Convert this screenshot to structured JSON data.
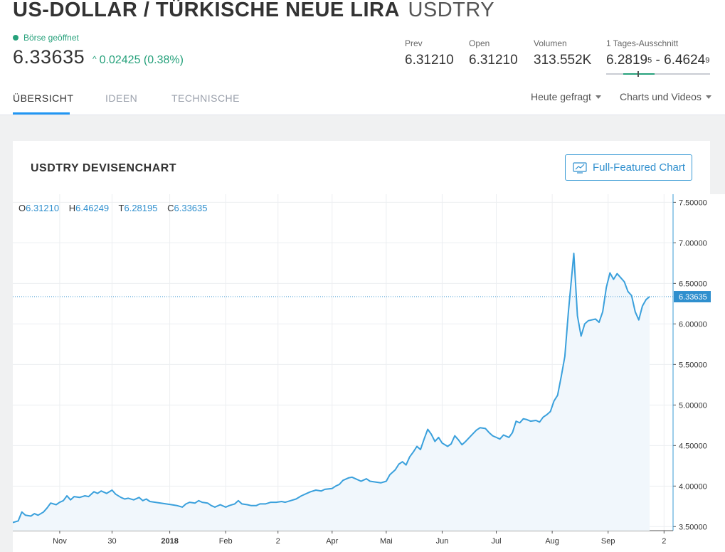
{
  "header": {
    "title": "US-DOLLAR / TÜRKISCHE NEUE LIRA",
    "symbol": "USDTRY",
    "status": "Börse geöffnet",
    "price": "6.33635",
    "change": "0.02425 (0.38%)",
    "stats": {
      "prev_label": "Prev",
      "prev_value": "6.31210",
      "open_label": "Open",
      "open_value": "6.31210",
      "volume_label": "Volumen",
      "volume_value": "313.552K",
      "range_label": "1 Tages-Ausschnitt",
      "range_low": "6.2819",
      "range_low_sup": "5",
      "range_sep": "-",
      "range_high": "6.4624",
      "range_high_sup": "9",
      "range_position": 0.3
    }
  },
  "tabs": [
    {
      "label": "ÜBERSICHT",
      "active": true
    },
    {
      "label": "IDEEN",
      "active": false
    },
    {
      "label": "TECHNISCHE",
      "active": false
    }
  ],
  "dropdowns": [
    "Heute gefragt",
    "Charts und Videos"
  ],
  "card": {
    "title": "USDTRY DEVISENCHART",
    "button_label": "Full-Featured Chart"
  },
  "ohlc": {
    "o_label": "O",
    "o_value": "6.31210",
    "h_label": "H",
    "h_value": "6.46249",
    "l_label": "T",
    "l_value": "6.28195",
    "c_label": "C",
    "c_value": "6.33635"
  },
  "colors": {
    "accent": "#2f8fce",
    "line": "#3aa0dc",
    "positive": "#26a17b",
    "area_fill": "#f1f7fc"
  },
  "chart_data": {
    "type": "area",
    "ylim": [
      3.45,
      7.6
    ],
    "y_ticks": [
      3.5,
      4.0,
      4.5,
      5.0,
      5.5,
      6.0,
      6.5,
      7.0,
      7.5
    ],
    "y_tick_labels": [
      "3.50000",
      "4.00000",
      "4.50000",
      "5.00000",
      "5.50000",
      "6.00000",
      "6.50000",
      "7.00000",
      "7.50000"
    ],
    "x_ticks": [
      {
        "label": "Nov",
        "date": "2017-11-01",
        "bold": false
      },
      {
        "label": "30",
        "date": "2017-11-30",
        "bold": false
      },
      {
        "label": "2018",
        "date": "2018-01-01",
        "bold": true
      },
      {
        "label": "Feb",
        "date": "2018-02-01",
        "bold": false
      },
      {
        "label": "2",
        "date": "2018-03-02",
        "bold": false
      },
      {
        "label": "Apr",
        "date": "2018-04-01",
        "bold": false
      },
      {
        "label": "Mai",
        "date": "2018-05-01",
        "bold": false
      },
      {
        "label": "Jun",
        "date": "2018-06-01",
        "bold": false
      },
      {
        "label": "Jul",
        "date": "2018-07-01",
        "bold": false
      },
      {
        "label": "Aug",
        "date": "2018-08-01",
        "bold": false
      },
      {
        "label": "Sep",
        "date": "2018-09-01",
        "bold": false
      },
      {
        "label": "2",
        "date": "2018-10-02",
        "bold": false
      }
    ],
    "x_range": [
      "2017-10-06",
      "2018-10-07"
    ],
    "last_value_label": "6.33635",
    "last_value": 6.33635,
    "series": [
      {
        "values": [
          [
            "2017-10-06",
            3.55
          ],
          [
            "2017-10-09",
            3.57
          ],
          [
            "2017-10-11",
            3.68
          ],
          [
            "2017-10-13",
            3.64
          ],
          [
            "2017-10-16",
            3.63
          ],
          [
            "2017-10-18",
            3.66
          ],
          [
            "2017-10-20",
            3.64
          ],
          [
            "2017-10-23",
            3.68
          ],
          [
            "2017-10-25",
            3.73
          ],
          [
            "2017-10-27",
            3.79
          ],
          [
            "2017-10-30",
            3.77
          ],
          [
            "2017-11-01",
            3.8
          ],
          [
            "2017-11-03",
            3.82
          ],
          [
            "2017-11-05",
            3.88
          ],
          [
            "2017-11-07",
            3.83
          ],
          [
            "2017-11-09",
            3.87
          ],
          [
            "2017-11-12",
            3.86
          ],
          [
            "2017-11-15",
            3.88
          ],
          [
            "2017-11-17",
            3.87
          ],
          [
            "2017-11-20",
            3.93
          ],
          [
            "2017-11-22",
            3.91
          ],
          [
            "2017-11-24",
            3.94
          ],
          [
            "2017-11-27",
            3.91
          ],
          [
            "2017-11-30",
            3.95
          ],
          [
            "2017-12-02",
            3.9
          ],
          [
            "2017-12-05",
            3.86
          ],
          [
            "2017-12-07",
            3.84
          ],
          [
            "2017-12-09",
            3.85
          ],
          [
            "2017-12-12",
            3.83
          ],
          [
            "2017-12-15",
            3.86
          ],
          [
            "2017-12-17",
            3.82
          ],
          [
            "2017-12-19",
            3.84
          ],
          [
            "2017-12-21",
            3.81
          ],
          [
            "2017-12-24",
            3.8
          ],
          [
            "2017-12-27",
            3.79
          ],
          [
            "2017-12-30",
            3.78
          ],
          [
            "2018-01-02",
            3.77
          ],
          [
            "2018-01-05",
            3.76
          ],
          [
            "2018-01-08",
            3.74
          ],
          [
            "2018-01-10",
            3.78
          ],
          [
            "2018-01-12",
            3.8
          ],
          [
            "2018-01-15",
            3.79
          ],
          [
            "2018-01-17",
            3.82
          ],
          [
            "2018-01-19",
            3.8
          ],
          [
            "2018-01-22",
            3.79
          ],
          [
            "2018-01-24",
            3.76
          ],
          [
            "2018-01-26",
            3.74
          ],
          [
            "2018-01-29",
            3.77
          ],
          [
            "2018-02-01",
            3.74
          ],
          [
            "2018-02-03",
            3.76
          ],
          [
            "2018-02-06",
            3.78
          ],
          [
            "2018-02-08",
            3.82
          ],
          [
            "2018-02-10",
            3.78
          ],
          [
            "2018-02-13",
            3.77
          ],
          [
            "2018-02-15",
            3.76
          ],
          [
            "2018-02-18",
            3.76
          ],
          [
            "2018-02-20",
            3.78
          ],
          [
            "2018-02-23",
            3.78
          ],
          [
            "2018-02-26",
            3.8
          ],
          [
            "2018-03-01",
            3.8
          ],
          [
            "2018-03-04",
            3.81
          ],
          [
            "2018-03-06",
            3.8
          ],
          [
            "2018-03-09",
            3.82
          ],
          [
            "2018-03-12",
            3.84
          ],
          [
            "2018-03-15",
            3.88
          ],
          [
            "2018-03-18",
            3.91
          ],
          [
            "2018-03-20",
            3.93
          ],
          [
            "2018-03-23",
            3.95
          ],
          [
            "2018-03-26",
            3.94
          ],
          [
            "2018-03-28",
            3.96
          ],
          [
            "2018-04-01",
            3.97
          ],
          [
            "2018-04-03",
            4.0
          ],
          [
            "2018-04-05",
            4.02
          ],
          [
            "2018-04-07",
            4.07
          ],
          [
            "2018-04-10",
            4.1
          ],
          [
            "2018-04-12",
            4.11
          ],
          [
            "2018-04-15",
            4.08
          ],
          [
            "2018-04-17",
            4.06
          ],
          [
            "2018-04-20",
            4.09
          ],
          [
            "2018-04-22",
            4.06
          ],
          [
            "2018-04-25",
            4.05
          ],
          [
            "2018-04-28",
            4.04
          ],
          [
            "2018-05-01",
            4.06
          ],
          [
            "2018-05-03",
            4.14
          ],
          [
            "2018-05-06",
            4.2
          ],
          [
            "2018-05-08",
            4.27
          ],
          [
            "2018-05-10",
            4.3
          ],
          [
            "2018-05-12",
            4.26
          ],
          [
            "2018-05-14",
            4.36
          ],
          [
            "2018-05-16",
            4.42
          ],
          [
            "2018-05-18",
            4.49
          ],
          [
            "2018-05-20",
            4.45
          ],
          [
            "2018-05-22",
            4.58
          ],
          [
            "2018-05-24",
            4.7
          ],
          [
            "2018-05-26",
            4.64
          ],
          [
            "2018-05-28",
            4.55
          ],
          [
            "2018-05-30",
            4.6
          ],
          [
            "2018-06-01",
            4.53
          ],
          [
            "2018-06-04",
            4.49
          ],
          [
            "2018-06-06",
            4.52
          ],
          [
            "2018-06-08",
            4.62
          ],
          [
            "2018-06-10",
            4.57
          ],
          [
            "2018-06-12",
            4.51
          ],
          [
            "2018-06-14",
            4.55
          ],
          [
            "2018-06-17",
            4.62
          ],
          [
            "2018-06-20",
            4.69
          ],
          [
            "2018-06-22",
            4.72
          ],
          [
            "2018-06-25",
            4.71
          ],
          [
            "2018-06-27",
            4.66
          ],
          [
            "2018-06-29",
            4.62
          ],
          [
            "2018-07-01",
            4.6
          ],
          [
            "2018-07-03",
            4.58
          ],
          [
            "2018-07-05",
            4.63
          ],
          [
            "2018-07-08",
            4.6
          ],
          [
            "2018-07-10",
            4.66
          ],
          [
            "2018-07-12",
            4.8
          ],
          [
            "2018-07-14",
            4.78
          ],
          [
            "2018-07-16",
            4.83
          ],
          [
            "2018-07-18",
            4.82
          ],
          [
            "2018-07-20",
            4.8
          ],
          [
            "2018-07-23",
            4.81
          ],
          [
            "2018-07-25",
            4.79
          ],
          [
            "2018-07-27",
            4.85
          ],
          [
            "2018-07-29",
            4.88
          ],
          [
            "2018-07-31",
            4.92
          ],
          [
            "2018-08-02",
            5.05
          ],
          [
            "2018-08-04",
            5.12
          ],
          [
            "2018-08-06",
            5.35
          ],
          [
            "2018-08-08",
            5.6
          ],
          [
            "2018-08-10",
            6.15
          ],
          [
            "2018-08-13",
            6.87
          ],
          [
            "2018-08-15",
            6.1
          ],
          [
            "2018-08-17",
            5.85
          ],
          [
            "2018-08-19",
            6.0
          ],
          [
            "2018-08-21",
            6.04
          ],
          [
            "2018-08-23",
            6.05
          ],
          [
            "2018-08-25",
            6.06
          ],
          [
            "2018-08-27",
            6.02
          ],
          [
            "2018-08-29",
            6.15
          ],
          [
            "2018-08-31",
            6.45
          ],
          [
            "2018-09-02",
            6.63
          ],
          [
            "2018-09-04",
            6.55
          ],
          [
            "2018-09-06",
            6.62
          ],
          [
            "2018-09-08",
            6.57
          ],
          [
            "2018-09-10",
            6.52
          ],
          [
            "2018-09-12",
            6.4
          ],
          [
            "2018-09-14",
            6.35
          ],
          [
            "2018-09-16",
            6.15
          ],
          [
            "2018-09-18",
            6.05
          ],
          [
            "2018-09-20",
            6.22
          ],
          [
            "2018-09-22",
            6.3
          ],
          [
            "2018-09-24",
            6.33635
          ]
        ]
      }
    ]
  }
}
